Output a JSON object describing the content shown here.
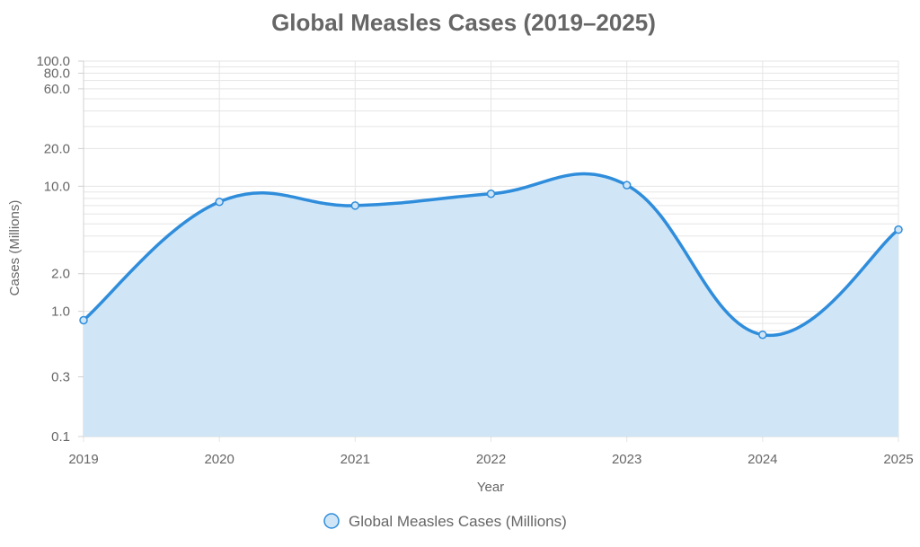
{
  "chart_data": {
    "type": "area",
    "title": "Global Measles Cases (2019–2025)",
    "xlabel": "Year",
    "ylabel": "Cases (Millions)",
    "y_scale": "log",
    "ylim": [
      0.1,
      100
    ],
    "x": [
      "2019",
      "2020",
      "2021",
      "2022",
      "2023",
      "2024",
      "2025"
    ],
    "y_tick_labels": [
      "0.1",
      "0.3",
      "1.0",
      "2.0",
      "10.0",
      "20.0",
      "60.0",
      "80.0",
      "100.0"
    ],
    "grid": true,
    "legend_position": "bottom",
    "series": [
      {
        "name": "Global Measles Cases (Millions)",
        "values": [
          0.85,
          7.5,
          7.0,
          8.7,
          10.2,
          0.65,
          4.5
        ],
        "line_color": "#2f8ddb",
        "fill_color": "#d0e6f7"
      }
    ]
  }
}
